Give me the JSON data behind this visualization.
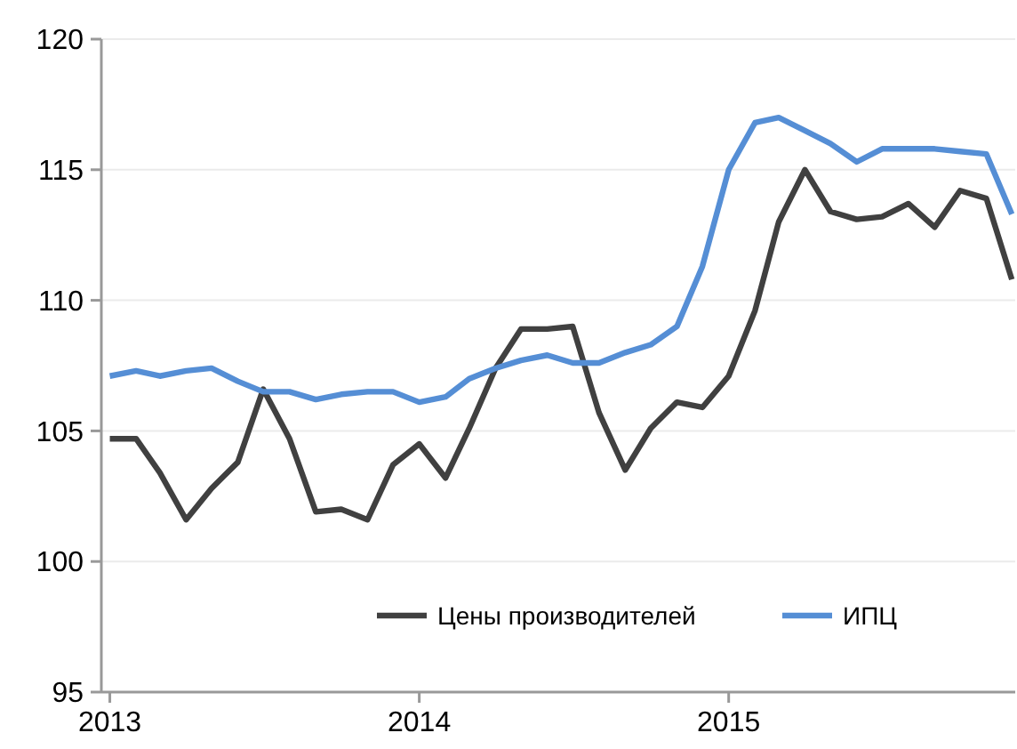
{
  "chart_data": {
    "type": "line",
    "x": [
      "2013-01",
      "2013-02",
      "2013-03",
      "2013-04",
      "2013-05",
      "2013-06",
      "2013-07",
      "2013-08",
      "2013-09",
      "2013-10",
      "2013-11",
      "2013-12",
      "2014-01",
      "2014-02",
      "2014-03",
      "2014-04",
      "2014-05",
      "2014-06",
      "2014-07",
      "2014-08",
      "2014-09",
      "2014-10",
      "2014-11",
      "2014-12",
      "2015-01",
      "2015-02",
      "2015-03",
      "2015-04",
      "2015-05",
      "2015-06",
      "2015-07",
      "2015-08",
      "2015-09",
      "2015-10",
      "2015-11",
      "2015-12"
    ],
    "series": [
      {
        "name": "Цены производителей",
        "color": "#404040",
        "values": [
          104.7,
          104.7,
          103.4,
          101.6,
          102.8,
          103.8,
          106.6,
          104.7,
          101.9,
          102.0,
          101.6,
          103.7,
          104.5,
          103.2,
          105.1,
          107.4,
          108.9,
          108.9,
          109.0,
          105.7,
          103.5,
          105.1,
          106.1,
          105.9,
          107.1,
          109.6,
          113.0,
          115.0,
          113.4,
          113.1,
          113.2,
          113.7,
          112.8,
          114.2,
          113.9,
          110.8
        ]
      },
      {
        "name": "ИПЦ",
        "color": "#558ed5",
        "values": [
          107.1,
          107.3,
          107.1,
          107.3,
          107.4,
          106.9,
          106.5,
          106.5,
          106.2,
          106.4,
          106.5,
          106.5,
          106.1,
          106.3,
          107.0,
          107.4,
          107.7,
          107.9,
          107.6,
          107.6,
          108.0,
          108.3,
          109.0,
          111.3,
          115.0,
          116.8,
          117.0,
          116.5,
          116.0,
          115.3,
          115.8,
          115.8,
          115.8,
          115.7,
          115.6,
          113.3
        ]
      }
    ],
    "xlim": [
      "2012-12-22",
      "2015-12-05"
    ],
    "xticks": [
      "2013",
      "2014",
      "2015"
    ],
    "ylim": [
      95,
      120
    ],
    "yticks": [
      95,
      100,
      105,
      110,
      115,
      120
    ],
    "grid": "y",
    "legend": "bottom",
    "line_style": "solid"
  }
}
